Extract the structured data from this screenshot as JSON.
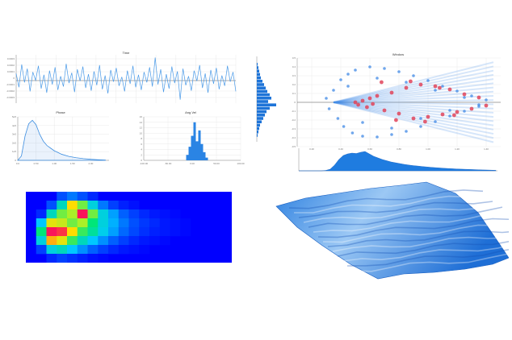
{
  "chart_data": [
    {
      "type": "line",
      "title": "Time",
      "ytick_labels": [
        "0.0003",
        "0.0002",
        "0.0001",
        "0",
        "-0.0001",
        "-0.0002",
        "-0.0003"
      ],
      "ylim": [
        -0.00035,
        0.00035
      ],
      "grid": true,
      "series": [
        {
          "values": [
            8e-05,
            -0.00012,
            0.00021,
            -5e-05,
            0.00015,
            -0.00018,
            0.0001,
            -2e-05,
            0.00019,
            -0.00014,
            6e-05,
            -0.0002,
            0.00012,
            -8e-05,
            0.00017,
            -0.00016,
            4e-05,
            -0.00011,
            0.00022,
            -6e-05,
            9e-05,
            -0.00019,
            0.00014,
            -3e-05,
            0.00018,
            -0.00013,
            7e-05,
            -0.00017,
            0.00011,
            -9e-05,
            0.0002,
            -0.00015,
            5e-05,
            -0.00021,
            0.00013,
            -4e-05,
            0.00016,
            -0.0001,
            3e-05,
            -0.00018,
            0.00012,
            -7e-05,
            0.00019,
            -0.00012,
            6e-05,
            -0.00016,
            0.0001,
            -5e-05,
            0.00017,
            -0.00011,
            0.00031,
            -8e-05,
            0.00014,
            -0.00019,
            7e-05,
            -0.00014,
            0.00018,
            -6e-05,
            0.00011,
            -0.0003,
            0.00015,
            -9e-05,
            4e-05,
            -0.00017,
            0.00012,
            -3e-05,
            0.0002,
            -0.00013,
            8e-05,
            -0.0002,
            0.00013,
            -7e-05,
            0.00016,
            -0.00015,
            5e-05,
            -0.0001,
            0.00019,
            -4e-05,
            0.0001,
            -0.00018
          ]
        }
      ]
    },
    {
      "type": "area",
      "title": "Phase",
      "ytick_labels": [
        "5e5",
        "4e5",
        "3e5",
        "2e5",
        "1e5",
        "0"
      ],
      "xtick_labels": [
        "0.0",
        "0.50",
        "1.00",
        "1.50",
        "2.00"
      ],
      "xlim": [
        0,
        2.5
      ],
      "ylim": [
        0,
        5
      ],
      "series": [
        {
          "x": [
            0,
            0.1,
            0.2,
            0.3,
            0.4,
            0.5,
            0.6,
            0.7,
            0.8,
            0.9,
            1.0,
            1.1,
            1.2,
            1.4,
            1.6,
            1.8,
            2.0,
            2.2,
            2.4
          ],
          "values": [
            0,
            0.5,
            2.8,
            4.2,
            4.6,
            4.1,
            3.0,
            2.2,
            1.7,
            1.4,
            1.1,
            0.9,
            0.7,
            0.45,
            0.3,
            0.2,
            0.12,
            0.07,
            0.03
          ]
        }
      ]
    },
    {
      "type": "bar",
      "title": "Ang Vel",
      "ytick_labels": [
        "16",
        "14",
        "12",
        "10",
        "8",
        "6",
        "4",
        "2",
        "0"
      ],
      "xtick_labels": [
        "-100.00",
        "-50.00",
        "0.00",
        "50.00",
        "100.00"
      ],
      "xlim": [
        -100,
        100
      ],
      "ylim": [
        0,
        16
      ],
      "series": [
        {
          "x": [
            -10,
            -5,
            0,
            5,
            10,
            15,
            20,
            25,
            30
          ],
          "values": [
            2,
            5,
            9,
            14,
            7,
            11,
            6,
            3,
            1
          ]
        }
      ]
    },
    {
      "type": "scatter",
      "title": "Window",
      "ytick_labels": [
        "0.5",
        "0.4",
        "0.3",
        "0.2",
        "0.1",
        "0",
        "-0.1",
        "-0.2",
        "-0.3",
        "-0.4",
        "-0.5"
      ],
      "xtick_labels": [
        "0.20",
        "0.40",
        "0.60",
        "0.80",
        "1.00",
        "1.20",
        "1.40"
      ],
      "xlim": [
        0.1,
        1.5
      ],
      "ylim": [
        -0.55,
        0.55
      ],
      "series": [
        {
          "color": "#3f88e6",
          "x": [
            0.3,
            0.32,
            0.35,
            0.38,
            0.4,
            0.42,
            0.45,
            0.48,
            0.5,
            0.55,
            0.6,
            0.65,
            0.7,
            0.75,
            0.8,
            0.85,
            0.9,
            0.95,
            1.0,
            1.05,
            1.1,
            1.15,
            1.2,
            1.25,
            1.3,
            1.35,
            1.4,
            0.45,
            0.55,
            0.65,
            0.75,
            0.85,
            0.95,
            1.05,
            1.15,
            1.25,
            1.35
          ],
          "y": [
            0.05,
            -0.08,
            0.15,
            -0.2,
            0.28,
            -0.3,
            0.35,
            -0.38,
            0.4,
            -0.42,
            0.44,
            -0.43,
            0.42,
            -0.4,
            0.38,
            -0.36,
            0.33,
            -0.3,
            0.27,
            -0.24,
            0.2,
            -0.17,
            0.14,
            -0.11,
            0.08,
            -0.05,
            0.03,
            0.2,
            -0.25,
            0.3,
            -0.32,
            0.25,
            -0.2,
            0.15,
            -0.1,
            0.06,
            -0.03
          ]
        },
        {
          "color": "#e0445a",
          "x": [
            0.5,
            0.52,
            0.55,
            0.58,
            0.6,
            0.62,
            0.65,
            0.7,
            0.75,
            0.8,
            0.85,
            0.9,
            0.95,
            1.0,
            1.05,
            1.1,
            1.15,
            1.2,
            1.25,
            1.3,
            1.35,
            1.4,
            0.68,
            0.78,
            0.88,
            0.98,
            1.08,
            1.18
          ],
          "y": [
            0.0,
            -0.03,
            0.02,
            -0.06,
            0.05,
            -0.02,
            0.08,
            -0.1,
            0.12,
            -0.14,
            0.18,
            -0.2,
            0.22,
            -0.18,
            0.2,
            -0.15,
            0.16,
            -0.12,
            0.1,
            -0.08,
            0.06,
            -0.04,
            0.25,
            -0.22,
            0.26,
            -0.24,
            0.18,
            -0.16
          ]
        }
      ]
    },
    {
      "type": "heatmap",
      "rows": 8,
      "cols": 20,
      "values": [
        [
          0,
          0,
          0,
          0.1,
          0.15,
          0.1,
          0.05,
          0,
          0,
          0,
          0,
          0,
          0,
          0,
          0,
          0,
          0,
          0,
          0,
          0
        ],
        [
          0,
          0,
          0.1,
          0.35,
          0.75,
          0.55,
          0.3,
          0.15,
          0.08,
          0.04,
          0.02,
          0,
          0,
          0,
          0,
          0,
          0,
          0,
          0,
          0
        ],
        [
          0,
          0.05,
          0.35,
          0.55,
          0.6,
          1.0,
          0.55,
          0.3,
          0.2,
          0.12,
          0.08,
          0.05,
          0.03,
          0.02,
          0.01,
          0,
          0,
          0,
          0,
          0
        ],
        [
          0,
          0.25,
          0.7,
          0.65,
          0.55,
          0.6,
          0.45,
          0.3,
          0.22,
          0.15,
          0.1,
          0.07,
          0.05,
          0.03,
          0.02,
          0.01,
          0,
          0,
          0,
          0
        ],
        [
          0,
          0.45,
          1.0,
          0.95,
          0.75,
          0.5,
          0.4,
          0.28,
          0.2,
          0.13,
          0.09,
          0.06,
          0.04,
          0.03,
          0.02,
          0.01,
          0,
          0,
          0,
          0
        ],
        [
          0,
          0.3,
          0.8,
          0.7,
          0.5,
          0.35,
          0.25,
          0.18,
          0.12,
          0.08,
          0.05,
          0.03,
          0.02,
          0.01,
          0,
          0,
          0,
          0,
          0,
          0
        ],
        [
          0,
          0.08,
          0.3,
          0.35,
          0.25,
          0.18,
          0.12,
          0.08,
          0.05,
          0.03,
          0.02,
          0.01,
          0,
          0,
          0,
          0,
          0,
          0,
          0,
          0
        ],
        [
          0,
          0,
          0.05,
          0.08,
          0.06,
          0.04,
          0.02,
          0.01,
          0,
          0,
          0,
          0,
          0,
          0,
          0,
          0,
          0,
          0,
          0,
          0
        ]
      ]
    },
    {
      "type": "area",
      "series": [
        {
          "color": "#3d8ee0"
        }
      ]
    }
  ]
}
